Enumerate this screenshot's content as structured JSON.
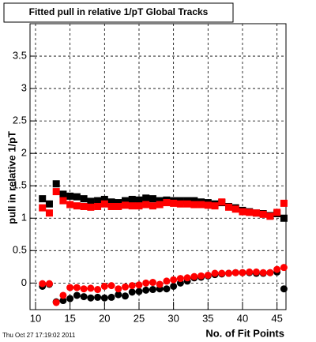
{
  "chart_data": {
    "type": "scatter",
    "title": "Fitted pull in relative 1/pT  Global Tracks",
    "x_label": "No. of Fit Points",
    "y_label": "pull in relative 1/pT",
    "footer": "Thu Oct 27 17:19:02 2011",
    "x": [
      11,
      12,
      13,
      14,
      15,
      16,
      17,
      18,
      19,
      20,
      21,
      22,
      23,
      24,
      25,
      26,
      27,
      28,
      29,
      30,
      31,
      32,
      33,
      34,
      35,
      36,
      37,
      38,
      39,
      40,
      41,
      42,
      43,
      44,
      45,
      46
    ],
    "series": [
      {
        "color": "#000000",
        "marker": "square",
        "values": [
          1.3,
          1.22,
          1.53,
          1.37,
          1.34,
          1.33,
          1.3,
          1.26,
          1.27,
          1.29,
          1.25,
          1.24,
          1.27,
          1.29,
          1.28,
          1.31,
          1.3,
          1.27,
          1.28,
          1.27,
          1.27,
          1.27,
          1.27,
          1.25,
          1.24,
          1.22,
          1.24,
          1.18,
          1.16,
          1.12,
          1.1,
          1.08,
          1.07,
          1.04,
          1.07,
          1.0
        ]
      },
      {
        "color": "#ff0000",
        "marker": "square",
        "values": [
          1.16,
          1.08,
          1.41,
          1.27,
          1.21,
          1.19,
          1.18,
          1.17,
          1.18,
          1.22,
          1.18,
          1.18,
          1.2,
          1.19,
          1.19,
          1.21,
          1.19,
          1.21,
          1.24,
          1.23,
          1.22,
          1.22,
          1.21,
          1.21,
          1.2,
          1.19,
          1.25,
          1.17,
          1.14,
          1.1,
          1.09,
          1.08,
          1.06,
          1.03,
          1.09,
          1.23
        ]
      },
      {
        "color": "#000000",
        "marker": "circle",
        "values": [
          -0.05,
          -0.02,
          -0.29,
          -0.27,
          -0.24,
          -0.19,
          -0.21,
          -0.23,
          -0.22,
          -0.23,
          -0.22,
          -0.18,
          -0.2,
          -0.14,
          -0.13,
          -0.11,
          -0.1,
          -0.09,
          -0.09,
          -0.05,
          0.0,
          0.03,
          0.08,
          0.09,
          0.11,
          0.13,
          0.14,
          0.15,
          0.16,
          0.16,
          0.16,
          0.15,
          0.15,
          0.16,
          0.17,
          -0.09
        ]
      },
      {
        "color": "#ff0000",
        "marker": "circle",
        "values": [
          -0.01,
          -0.01,
          -0.3,
          -0.19,
          -0.07,
          -0.07,
          -0.09,
          -0.08,
          -0.1,
          -0.05,
          -0.04,
          -0.09,
          -0.06,
          -0.04,
          -0.03,
          0.0,
          0.01,
          -0.02,
          0.03,
          0.05,
          0.07,
          0.08,
          0.1,
          0.11,
          0.12,
          0.15,
          0.15,
          0.15,
          0.16,
          0.16,
          0.17,
          0.17,
          0.16,
          0.16,
          0.21,
          0.24
        ]
      }
    ],
    "xlim": [
      9.2,
      46.3
    ],
    "ylim": [
      -0.41,
      4.0
    ],
    "xticks": [
      10,
      15,
      20,
      25,
      30,
      35,
      40,
      45
    ],
    "yticks": [
      0,
      0.5,
      1,
      1.5,
      2,
      2.5,
      3,
      3.5
    ],
    "grid": true
  }
}
